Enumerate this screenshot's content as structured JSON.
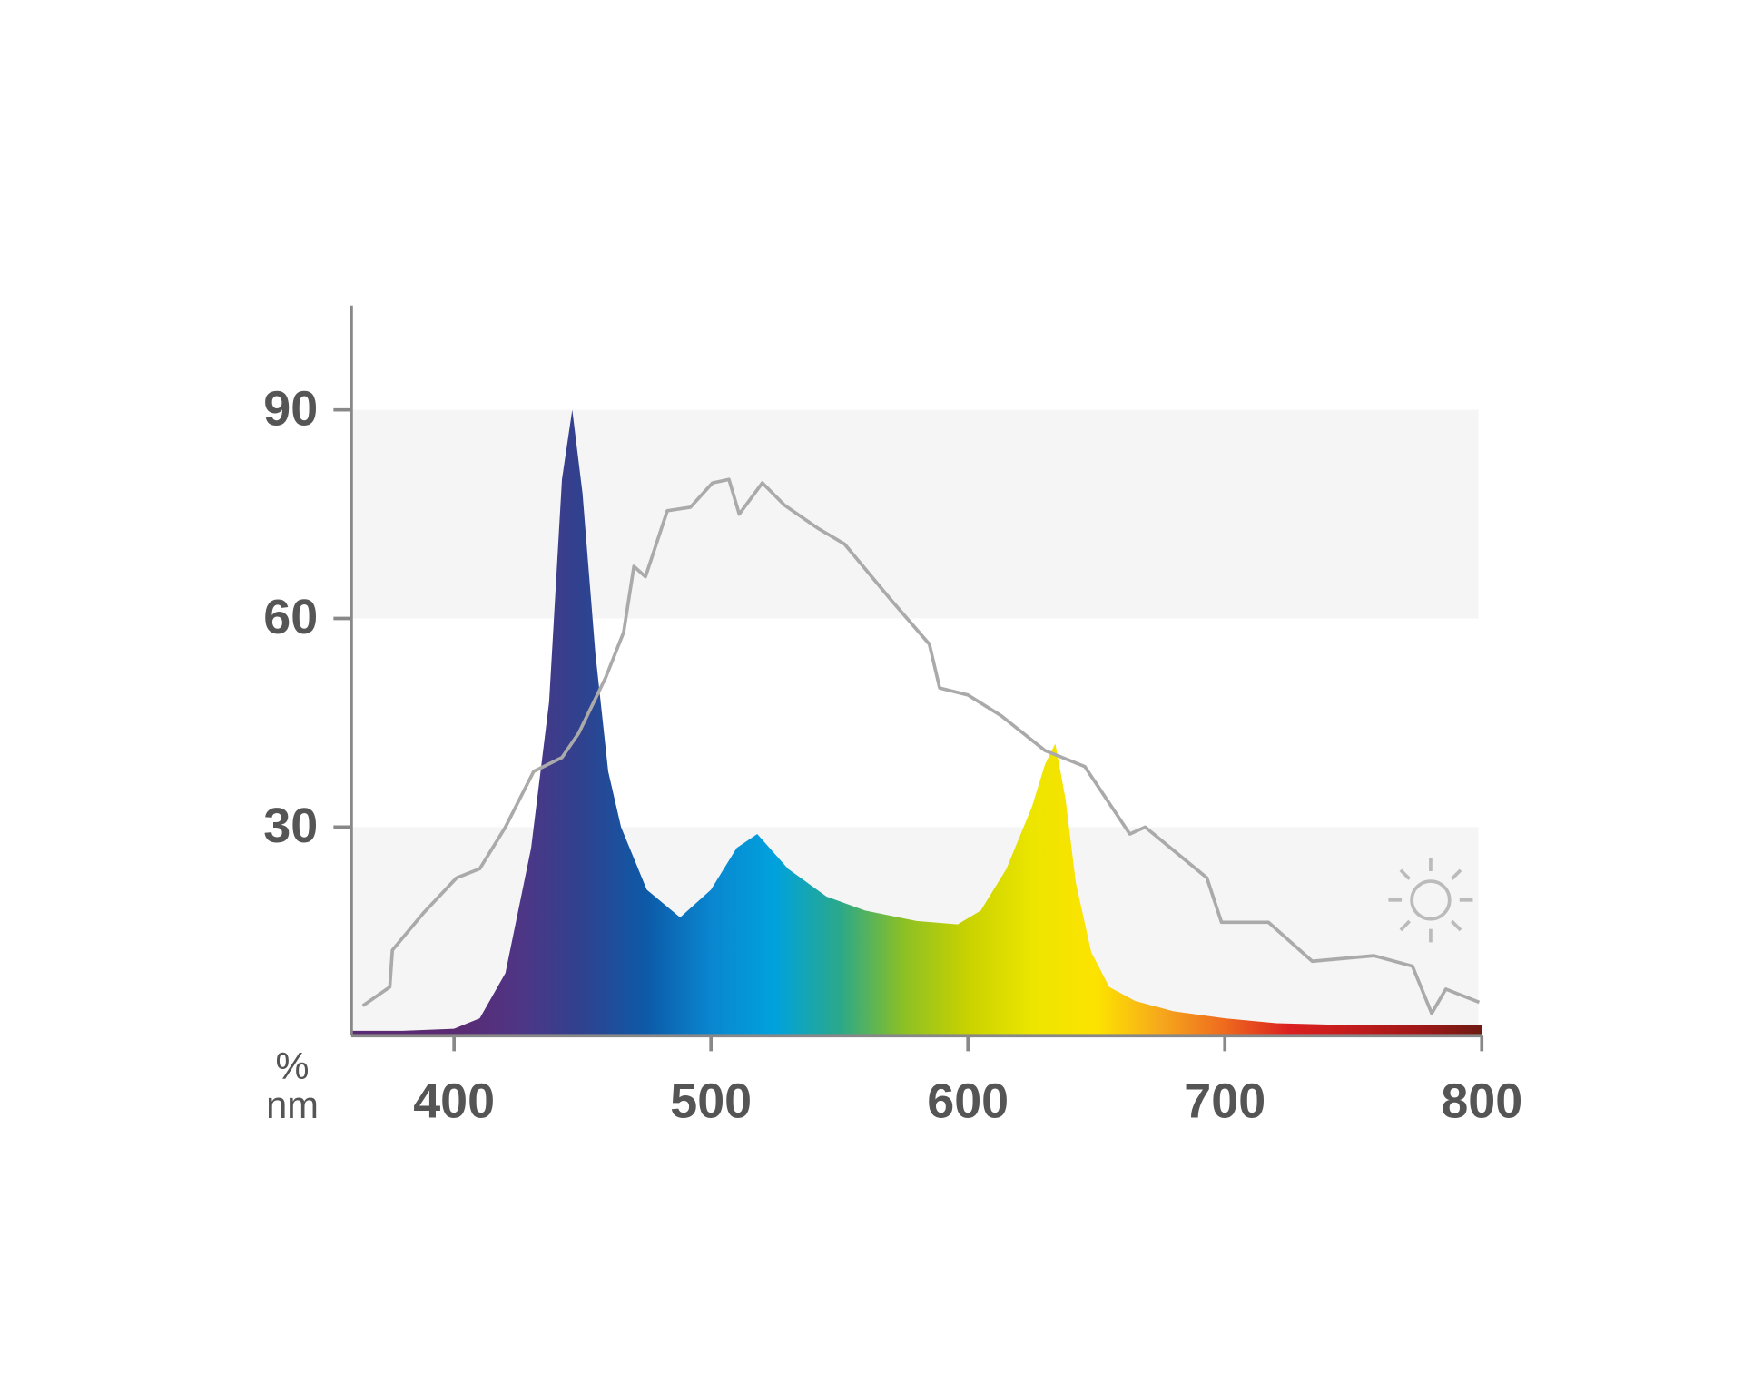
{
  "chart_data": {
    "type": "area",
    "x_unit_label": "nm",
    "y_unit_label": "%",
    "xlim": [
      360,
      800
    ],
    "ylim": [
      0,
      105
    ],
    "xticks": [
      400,
      500,
      600,
      700,
      800
    ],
    "yticks": [
      30,
      60,
      90
    ],
    "grid": "bands",
    "series": [
      {
        "type": "area",
        "colors": [
          "#5a2a72",
          "#4f3585",
          "#2f428f",
          "#0d5aa8",
          "#0a86cf",
          "#00a2dd",
          "#2aa88a",
          "#8cc024",
          "#c9d200",
          "#ece500",
          "#fde300",
          "#f6a81c",
          "#ee6a1e",
          "#db2020",
          "#c21c1c",
          "#a01818",
          "#6e1a12"
        ],
        "x": [
          360,
          380,
          400,
          410,
          420,
          430,
          437,
          442,
          446,
          450,
          455,
          460,
          465,
          475,
          488,
          500,
          510,
          518,
          530,
          545,
          560,
          580,
          596,
          605,
          615,
          625,
          630,
          634,
          638,
          642,
          648,
          655,
          665,
          680,
          700,
          720,
          750,
          780,
          800
        ],
        "values": [
          0.7,
          0.7,
          1,
          2.5,
          9,
          27,
          48,
          80,
          90,
          78,
          55,
          38,
          30,
          21,
          17,
          21,
          27,
          29,
          24,
          20,
          18,
          16.5,
          16,
          18,
          24,
          33,
          39,
          42,
          34,
          22,
          12,
          7,
          5,
          3.5,
          2.5,
          1.8,
          1.5,
          1.5,
          1.5
        ]
      },
      {
        "type": "line",
        "color": "#aaaaaa",
        "x": [
          364.5,
          375,
          376,
          388,
          401,
          410,
          420,
          431,
          442,
          448.5,
          459,
          466,
          470,
          474.5,
          483,
          492,
          500.6,
          507,
          511,
          520,
          528.6,
          541.5,
          552,
          570,
          585,
          589,
          600,
          613,
          630,
          645.5,
          663,
          669,
          693,
          698.7,
          717,
          734,
          758,
          773,
          780.5,
          786,
          799
        ],
        "values": [
          4.3,
          7,
          12.3,
          17.6,
          22.7,
          24,
          30,
          38,
          40,
          43.5,
          51.5,
          58,
          67.5,
          66,
          75.5,
          76,
          79.5,
          80,
          75,
          79.5,
          76.3,
          73,
          70.7,
          62.7,
          56.3,
          50,
          49,
          46,
          41,
          38.7,
          29,
          30,
          22.7,
          16.3,
          16.3,
          10.7,
          11.5,
          10,
          3.2,
          6.7,
          4.8
        ]
      }
    ]
  }
}
